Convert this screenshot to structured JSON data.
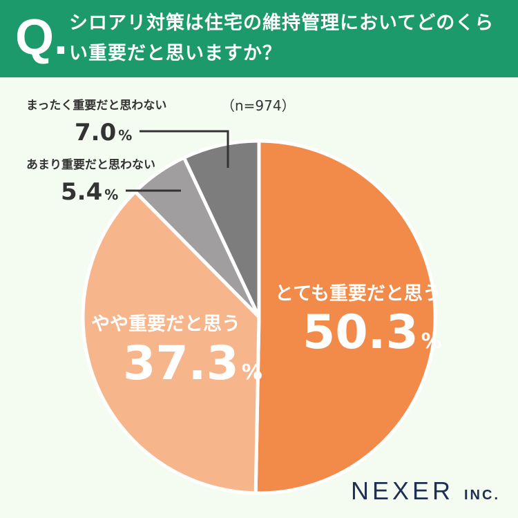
{
  "header": {
    "q_mark": "Q.",
    "question": "シロアリ対策は住宅の維持管理においてどのくらい重要だと思いますか？"
  },
  "colors": {
    "header_bg": "#1d9a6c",
    "background": "#f4fbf1",
    "slice_very": "#f28b4a",
    "slice_somewhat": "#f7b58c",
    "slice_not_very": "#a09e9e",
    "slice_not_at_all": "#7e7d7d",
    "brand": "#1f2f4f"
  },
  "chart_data": {
    "type": "pie",
    "n_label": "（n=974）",
    "unit": "%",
    "slices": [
      {
        "label": "とても重要だと思う",
        "value": 50.3,
        "value_text": "50.3"
      },
      {
        "label": "やや重要だと思う",
        "value": 37.3,
        "value_text": "37.3"
      },
      {
        "label": "あまり重要だと思わない",
        "value": 5.4,
        "value_text": "5.4"
      },
      {
        "label": "まったく重要だと思わない",
        "value": 7.0,
        "value_text": "7.0"
      }
    ]
  },
  "brand": {
    "name": "NEXER",
    "suffix": "INC."
  }
}
